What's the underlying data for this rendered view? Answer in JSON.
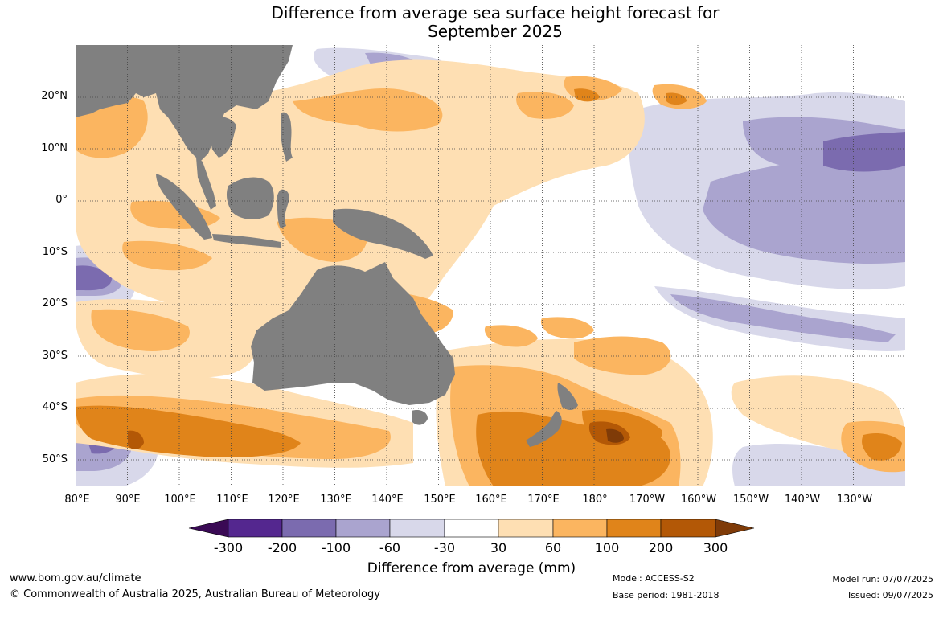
{
  "title": {
    "line1": "Difference from average sea surface height forecast for",
    "line2": "September 2025"
  },
  "map": {
    "latitude_labels": [
      "20°N",
      "10°N",
      "0°",
      "10°S",
      "20°S",
      "30°S",
      "40°S",
      "50°S"
    ],
    "longitude_labels": [
      "80°E",
      "90°E",
      "100°E",
      "110°E",
      "120°E",
      "130°E",
      "140°E",
      "150°E",
      "160°E",
      "170°E",
      "180°",
      "170°W",
      "160°W",
      "150°W",
      "140°W",
      "130°W"
    ],
    "land_color": "#808080",
    "gridline_color": "#444444"
  },
  "legend": {
    "title": "Difference from average (mm)",
    "tick_labels": [
      "-300",
      "-200",
      "-100",
      "-60",
      "-30",
      "30",
      "60",
      "100",
      "200",
      "300"
    ],
    "colors": [
      "#3a0a55",
      "#54278f",
      "#7b6baf",
      "#aaa4cf",
      "#d8d8ea",
      "#ffffff",
      "#fedfb3",
      "#fbb560",
      "#e0841a",
      "#b35806",
      "#7f3b08"
    ]
  },
  "footer": {
    "website": "www.bom.gov.au/climate",
    "copyright": "© Commonwealth of Australia 2025, Australian Bureau of Meteorology",
    "model": "Model: ACCESS-S2",
    "base_period": "Base period: 1981-2018",
    "model_run": "Model run: 07/07/2025",
    "issued": "Issued: 09/07/2025"
  }
}
